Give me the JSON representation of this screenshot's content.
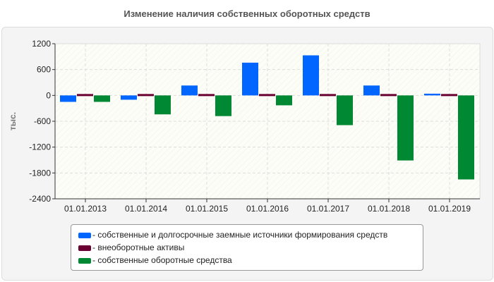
{
  "chart_data": {
    "type": "bar",
    "title": "Изменение наличия собственных оборотных средств",
    "ylabel": "тыс.",
    "ylim": [
      -2400,
      1200
    ],
    "yticks": [
      1200,
      600,
      0,
      -600,
      -1200,
      -1800,
      -2400
    ],
    "grid": true,
    "legend_placement": "bottom",
    "categories": [
      "01.01.2013",
      "01.01.2014",
      "01.01.2015",
      "01.01.2016",
      "01.01.2017",
      "01.01.2018",
      "01.01.2019"
    ],
    "series": [
      {
        "name": "- собственные и долгосрочные заемные источники формирования средств",
        "color": "#0066ff",
        "values": [
          -150,
          -100,
          230,
          760,
          930,
          230,
          40
        ]
      },
      {
        "name": "- внеоборотные активы",
        "color": "#6b0033",
        "values": [
          20,
          20,
          20,
          20,
          20,
          20,
          20
        ]
      },
      {
        "name": "- собственные оборотные средства",
        "color": "#008833",
        "values": [
          -150,
          -440,
          -480,
          -230,
          -690,
          -1510,
          -1950
        ]
      }
    ]
  }
}
